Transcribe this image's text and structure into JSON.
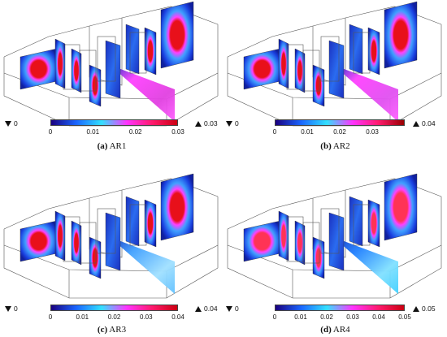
{
  "panels": [
    {
      "caption_letter": "(a)",
      "caption_name": "AR1",
      "min_label": "0",
      "max_label": "0.03",
      "ticks": [
        "0",
        "0.01",
        "0.02",
        "0.03"
      ],
      "tick_fractions": [
        0.0,
        0.333,
        0.667,
        1.0
      ],
      "colormap": [
        "#1a0080",
        "#1a66ff",
        "#33e0ff",
        "#ff33ff",
        "#ff1a6e",
        "#cc0010"
      ]
    },
    {
      "caption_letter": "(b)",
      "caption_name": "AR2",
      "min_label": "0",
      "max_label": "0.04",
      "ticks": [
        "0",
        "0.01",
        "0.02",
        "0.03"
      ],
      "tick_fractions": [
        0.0,
        0.25,
        0.5,
        0.75
      ],
      "colormap": [
        "#1a0080",
        "#1a66ff",
        "#33e0ff",
        "#ff33ff",
        "#ff1a6e",
        "#990000"
      ]
    },
    {
      "caption_letter": "(c)",
      "caption_name": "AR3",
      "min_label": "0",
      "max_label": "0.04",
      "ticks": [
        "0",
        "0.01",
        "0.02",
        "0.03",
        "0.04"
      ],
      "tick_fractions": [
        0.0,
        0.25,
        0.5,
        0.75,
        1.0
      ],
      "colormap": [
        "#1a0080",
        "#1a66ff",
        "#33e0ff",
        "#ff33ff",
        "#ff1a6e",
        "#cc0010"
      ]
    },
    {
      "caption_letter": "(d)",
      "caption_name": "AR4",
      "min_label": "0",
      "max_label": "0.05",
      "ticks": [
        "0",
        "0.01",
        "0.02",
        "0.03",
        "0.04",
        "0.05"
      ],
      "tick_fractions": [
        0.0,
        0.2,
        0.4,
        0.6,
        0.8,
        1.0
      ],
      "colormap": [
        "#1a0080",
        "#1a66ff",
        "#33e0ff",
        "#ff33ff",
        "#ff1a6e",
        "#cc0010"
      ]
    }
  ]
}
